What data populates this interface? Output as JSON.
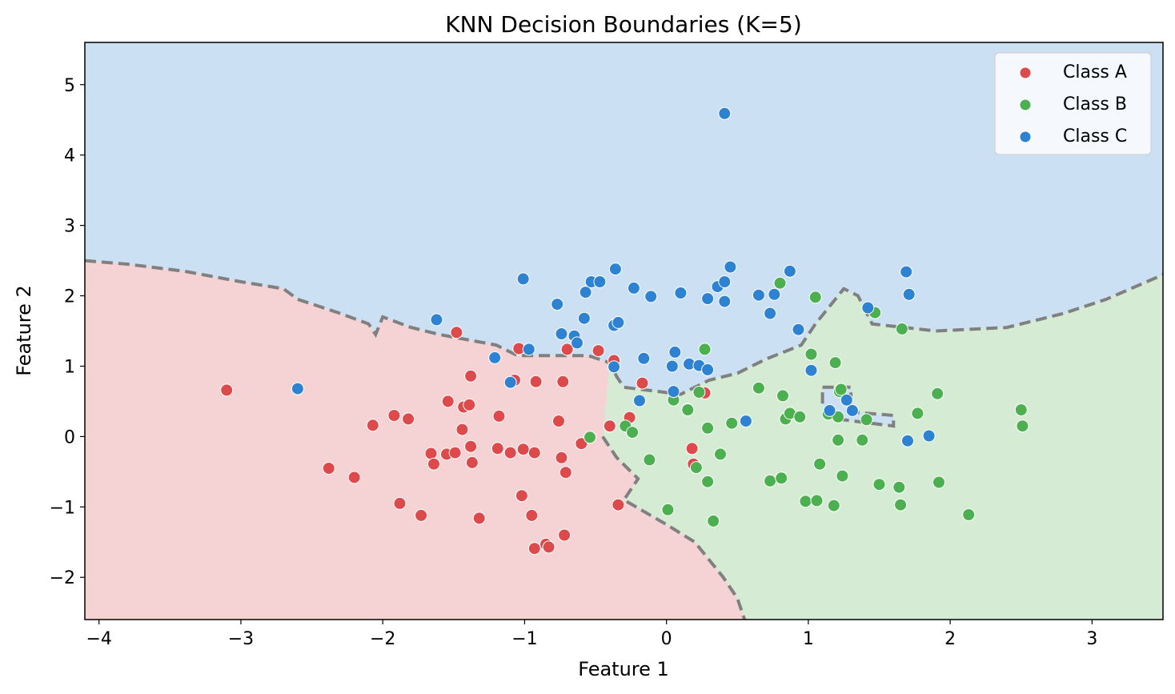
{
  "chart_data": {
    "type": "scatter",
    "title": "KNN Decision Boundaries (K=5)",
    "xlabel": "Feature 1",
    "ylabel": "Feature 2",
    "xlim": [
      -4.1,
      3.5
    ],
    "ylim": [
      -2.6,
      5.6
    ],
    "xticks": [
      -4,
      -3,
      -2,
      -1,
      0,
      1,
      2,
      3
    ],
    "yticks": [
      -2,
      -1,
      0,
      1,
      2,
      3,
      4,
      5
    ],
    "legend_position": "top-right",
    "colors": {
      "region_a": "#f5d3d5",
      "region_b": "#d5ebd4",
      "region_c": "#cce0f3",
      "boundary": "#808080",
      "point_a": "#dc4a4c",
      "point_b": "#4caf50",
      "point_c": "#2e82d2"
    },
    "boundaries": {
      "ac": [
        [
          -4.1,
          2.5
        ],
        [
          -3.8,
          2.45
        ],
        [
          -3.4,
          2.35
        ],
        [
          -3.0,
          2.2
        ],
        [
          -2.7,
          2.1
        ],
        [
          -2.6,
          1.95
        ],
        [
          -2.3,
          1.75
        ],
        [
          -2.1,
          1.6
        ],
        [
          -2.05,
          1.45
        ],
        [
          -2.0,
          1.7
        ],
        [
          -1.8,
          1.55
        ],
        [
          -1.6,
          1.45
        ],
        [
          -1.2,
          1.3
        ],
        [
          -1.05,
          1.15
        ],
        [
          -0.55,
          1.15
        ],
        [
          -0.4,
          1.05
        ],
        [
          -0.35,
          0.85
        ],
        [
          -0.3,
          0.7
        ],
        [
          0.1,
          0.6
        ],
        [
          0.3,
          0.8
        ],
        [
          0.5,
          0.9
        ],
        [
          0.7,
          1.1
        ],
        [
          0.95,
          1.3
        ],
        [
          1.05,
          1.6
        ],
        [
          1.25,
          2.1
        ],
        [
          1.35,
          2.0
        ],
        [
          1.45,
          1.6
        ],
        [
          1.9,
          1.5
        ],
        [
          2.4,
          1.55
        ],
        [
          2.8,
          1.75
        ],
        [
          3.1,
          1.95
        ],
        [
          3.5,
          2.3
        ]
      ],
      "ab": [
        [
          -0.45,
          0.0
        ],
        [
          -0.35,
          -0.3
        ],
        [
          -0.2,
          -0.6
        ],
        [
          -0.3,
          -0.9
        ],
        [
          0.0,
          -1.25
        ],
        [
          0.2,
          -1.5
        ],
        [
          0.4,
          -2.0
        ],
        [
          0.5,
          -2.3
        ],
        [
          0.55,
          -2.6
        ]
      ],
      "island": [
        [
          1.1,
          0.7
        ],
        [
          1.3,
          0.7
        ],
        [
          1.3,
          0.35
        ],
        [
          1.6,
          0.3
        ],
        [
          1.6,
          0.15
        ],
        [
          1.2,
          0.25
        ],
        [
          1.1,
          0.45
        ],
        [
          1.1,
          0.7
        ]
      ]
    },
    "series": [
      {
        "name": "Class A",
        "points": [
          [
            -3.1,
            0.66
          ],
          [
            -2.6,
            0.68
          ],
          [
            -2.38,
            -0.45
          ],
          [
            -2.2,
            -0.58
          ],
          [
            -2.07,
            0.16
          ],
          [
            -1.92,
            0.3
          ],
          [
            -1.88,
            -0.95
          ],
          [
            -1.82,
            0.25
          ],
          [
            -1.73,
            -1.12
          ],
          [
            -1.66,
            -0.24
          ],
          [
            -1.64,
            -0.39
          ],
          [
            -1.55,
            -0.25
          ],
          [
            -1.54,
            0.5
          ],
          [
            -1.49,
            -0.23
          ],
          [
            -1.48,
            1.48
          ],
          [
            -1.44,
            0.1
          ],
          [
            -1.43,
            0.42
          ],
          [
            -1.39,
            0.45
          ],
          [
            -1.38,
            -0.14
          ],
          [
            -1.38,
            0.86
          ],
          [
            -1.37,
            -0.37
          ],
          [
            -1.32,
            -1.16
          ],
          [
            -1.19,
            -0.17
          ],
          [
            -1.18,
            0.29
          ],
          [
            -1.1,
            -0.23
          ],
          [
            -1.07,
            0.8
          ],
          [
            -1.04,
            1.25
          ],
          [
            -1.02,
            -0.84
          ],
          [
            -1.01,
            -0.18
          ],
          [
            -0.95,
            -1.12
          ],
          [
            -0.93,
            -0.23
          ],
          [
            -0.93,
            -1.59
          ],
          [
            -0.92,
            0.78
          ],
          [
            -0.85,
            -1.53
          ],
          [
            -0.83,
            -1.57
          ],
          [
            -0.76,
            0.22
          ],
          [
            -0.74,
            -0.3
          ],
          [
            -0.73,
            0.78
          ],
          [
            -0.72,
            -1.4
          ],
          [
            -0.71,
            -0.51
          ],
          [
            -0.7,
            1.24
          ],
          [
            -0.6,
            -0.1
          ],
          [
            -0.48,
            1.22
          ],
          [
            -0.4,
            0.15
          ],
          [
            -0.37,
            1.08
          ],
          [
            -0.34,
            -0.97
          ],
          [
            -0.26,
            0.27
          ],
          [
            -0.17,
            0.76
          ],
          [
            0.18,
            -0.17
          ],
          [
            0.19,
            -0.39
          ],
          [
            0.27,
            0.62
          ]
        ]
      },
      {
        "name": "Class B",
        "points": [
          [
            -0.54,
            -0.01
          ],
          [
            -0.29,
            0.15
          ],
          [
            -0.24,
            0.06
          ],
          [
            -0.12,
            -0.33
          ],
          [
            0.01,
            -1.04
          ],
          [
            0.05,
            0.52
          ],
          [
            0.15,
            0.39
          ],
          [
            0.15,
            0.38
          ],
          [
            0.21,
            -0.44
          ],
          [
            0.23,
            0.63
          ],
          [
            0.27,
            1.24
          ],
          [
            0.29,
            -0.64
          ],
          [
            0.29,
            0.12
          ],
          [
            0.33,
            -1.2
          ],
          [
            0.38,
            -0.25
          ],
          [
            0.46,
            0.19
          ],
          [
            0.65,
            0.69
          ],
          [
            0.73,
            -0.63
          ],
          [
            0.8,
            2.18
          ],
          [
            0.81,
            -0.59
          ],
          [
            0.82,
            0.58
          ],
          [
            0.84,
            0.25
          ],
          [
            0.87,
            0.33
          ],
          [
            0.94,
            0.28
          ],
          [
            0.98,
            -0.92
          ],
          [
            1.02,
            1.17
          ],
          [
            1.05,
            1.98
          ],
          [
            1.06,
            -0.91
          ],
          [
            1.08,
            -0.39
          ],
          [
            1.14,
            0.32
          ],
          [
            1.18,
            -0.98
          ],
          [
            1.19,
            1.05
          ],
          [
            1.21,
            -0.05
          ],
          [
            1.21,
            0.28
          ],
          [
            1.22,
            0.64
          ],
          [
            1.23,
            0.67
          ],
          [
            1.24,
            -0.56
          ],
          [
            1.38,
            -0.05
          ],
          [
            1.41,
            0.24
          ],
          [
            1.47,
            1.76
          ],
          [
            1.5,
            -0.68
          ],
          [
            1.64,
            -0.72
          ],
          [
            1.65,
            -0.97
          ],
          [
            1.66,
            1.53
          ],
          [
            1.77,
            0.33
          ],
          [
            1.91,
            0.61
          ],
          [
            1.92,
            -0.65
          ],
          [
            2.13,
            -1.11
          ],
          [
            2.5,
            0.38
          ],
          [
            2.51,
            0.15
          ]
        ]
      },
      {
        "name": "Class C",
        "points": [
          [
            -2.6,
            0.68
          ],
          [
            -1.62,
            1.66
          ],
          [
            -1.21,
            1.12
          ],
          [
            -1.1,
            0.77
          ],
          [
            -1.01,
            2.24
          ],
          [
            -0.97,
            1.24
          ],
          [
            -0.77,
            1.88
          ],
          [
            -0.74,
            1.46
          ],
          [
            -0.65,
            1.43
          ],
          [
            -0.63,
            1.33
          ],
          [
            -0.58,
            1.68
          ],
          [
            -0.57,
            2.05
          ],
          [
            -0.53,
            2.2
          ],
          [
            -0.47,
            2.2
          ],
          [
            -0.37,
            1.58
          ],
          [
            -0.37,
            0.99
          ],
          [
            -0.36,
            2.38
          ],
          [
            -0.34,
            1.62
          ],
          [
            -0.23,
            2.11
          ],
          [
            -0.19,
            0.51
          ],
          [
            -0.16,
            1.11
          ],
          [
            -0.11,
            1.99
          ],
          [
            0.04,
            1.0
          ],
          [
            0.05,
            0.64
          ],
          [
            0.06,
            1.2
          ],
          [
            0.1,
            2.04
          ],
          [
            0.16,
            1.03
          ],
          [
            0.23,
            1.01
          ],
          [
            0.29,
            1.96
          ],
          [
            0.29,
            0.95
          ],
          [
            0.36,
            2.13
          ],
          [
            0.41,
            4.59
          ],
          [
            0.41,
            2.2
          ],
          [
            0.41,
            1.92
          ],
          [
            0.45,
            2.41
          ],
          [
            0.56,
            0.22
          ],
          [
            0.65,
            2.01
          ],
          [
            0.73,
            1.75
          ],
          [
            0.76,
            2.02
          ],
          [
            0.87,
            2.35
          ],
          [
            0.93,
            1.52
          ],
          [
            1.02,
            0.94
          ],
          [
            1.15,
            0.37
          ],
          [
            1.27,
            0.52
          ],
          [
            1.31,
            0.37
          ],
          [
            1.42,
            1.83
          ],
          [
            1.69,
            2.34
          ],
          [
            1.7,
            -0.06
          ],
          [
            1.71,
            2.02
          ],
          [
            1.85,
            0.01
          ]
        ]
      }
    ]
  }
}
